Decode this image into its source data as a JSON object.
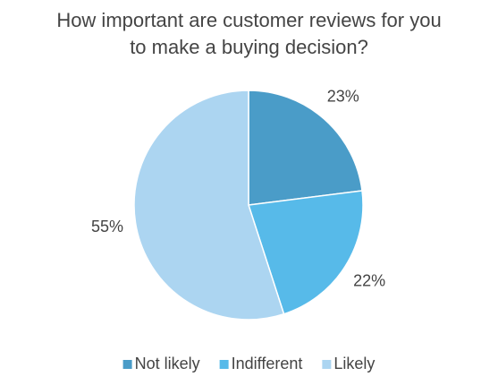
{
  "chart_data": {
    "type": "pie",
    "title": "How important are customer reviews for you to make a buying decision?",
    "categories": [
      "Not likely",
      "Indifferent",
      "Likely"
    ],
    "values": [
      23,
      22,
      55
    ],
    "value_labels": [
      "23%",
      "22%",
      "55%"
    ],
    "colors": [
      "#4a9cc8",
      "#57bae9",
      "#acd5f1"
    ],
    "legend": "bottom"
  }
}
